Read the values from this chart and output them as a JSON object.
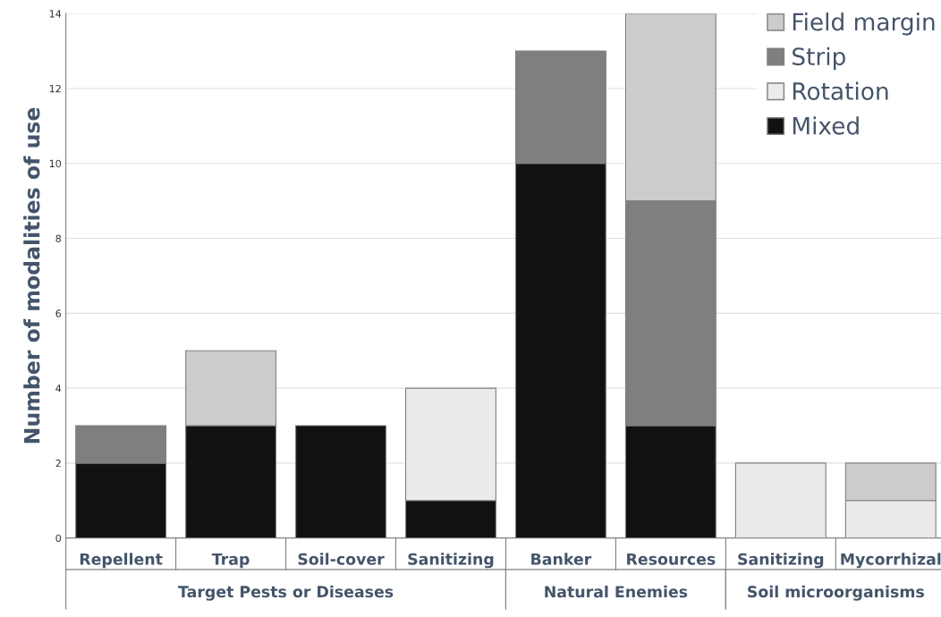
{
  "chart_data": {
    "type": "bar",
    "stacked": true,
    "ylabel": "Number of modalities of use",
    "categories": [
      "Repellent",
      "Trap",
      "Soil-cover",
      "Sanitizing",
      "Banker",
      "Resources",
      "Sanitizing",
      "Mycorrhizal"
    ],
    "series": [
      {
        "name": "Mixed",
        "color": "#111111",
        "values": [
          2,
          3,
          3,
          1,
          10,
          3,
          null,
          null
        ]
      },
      {
        "name": "Rotation",
        "color": "#ebebeb",
        "values": [
          null,
          null,
          null,
          3,
          null,
          null,
          2,
          1
        ]
      },
      {
        "name": "Strip",
        "color": "#7f7f7f",
        "values": [
          1,
          null,
          null,
          null,
          3,
          6,
          null,
          null
        ]
      },
      {
        "name": "Field margin",
        "color": "#cccccc",
        "values": [
          null,
          2,
          null,
          null,
          null,
          5,
          null,
          1
        ]
      }
    ],
    "annotations": [
      "Target Pests or Diseases",
      "Natural Enemies",
      "Soil microorganisms"
    ],
    "ylim": [
      0,
      14
    ],
    "yticks": [
      0,
      2,
      4,
      6,
      8,
      10,
      12,
      14
    ],
    "grid": "y",
    "legend": "top right"
  }
}
